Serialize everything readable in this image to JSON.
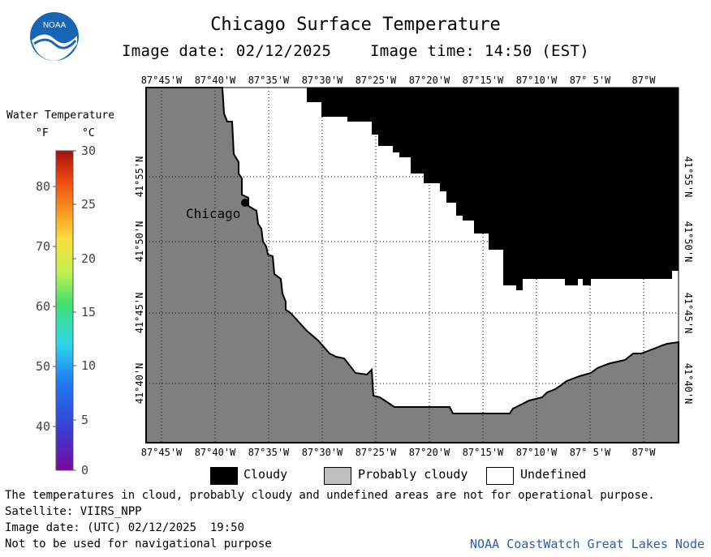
{
  "header": {
    "title": "Chicago Surface Temperature",
    "image_date_label": "Image date: 02/12/2025",
    "image_time_label": "Image time: 14:50 (EST)",
    "logo_text": "NOAA"
  },
  "colorbar": {
    "title": "Water Temperature",
    "unit_f": "°F",
    "unit_c": "°C",
    "f_ticks": [
      "80",
      "70",
      "60",
      "50",
      "40"
    ],
    "c_ticks": [
      "30",
      "25",
      "20",
      "15",
      "10",
      "5",
      "0"
    ]
  },
  "map": {
    "lon_ticks_top": [
      "87°45'W",
      "87°40'W",
      "87°35'W",
      "87°30'W",
      "87°25'W",
      "87°20'W",
      "87°15'W",
      "87°10'W",
      "87° 5'W",
      "87°W"
    ],
    "lon_ticks_bottom": [
      "87°45'W",
      "87°40'W",
      "87°35'W",
      "87°30'W",
      "87°25'W",
      "87°20'W",
      "87°15'W",
      "87°10'W",
      "87° 5'W",
      "87°W"
    ],
    "lat_ticks": [
      "41°55'N",
      "41°50'N",
      "41°45'N",
      "41°40'N"
    ],
    "city_label": "Chicago",
    "colors": {
      "land": "#7f7f7f",
      "cloudy": "#000000",
      "undefined": "#ffffff",
      "probably_cloudy": "#bfbfbf",
      "grid": "#000000"
    }
  },
  "legend": {
    "cloudy": "Cloudy",
    "probably_cloudy": "Probably cloudy",
    "undefined": "Undefined"
  },
  "footer": {
    "disclaimer": "The temperatures in cloud, probably cloudy and undefined areas are not for operational purpose.",
    "satellite": "Satellite: VIIRS_NPP",
    "utc_date": "Image date: (UTC) 02/12/2025  19:50",
    "nav_warning": "Not to be used for navigational purpose",
    "credit": "NOAA CoastWatch Great Lakes Node"
  }
}
